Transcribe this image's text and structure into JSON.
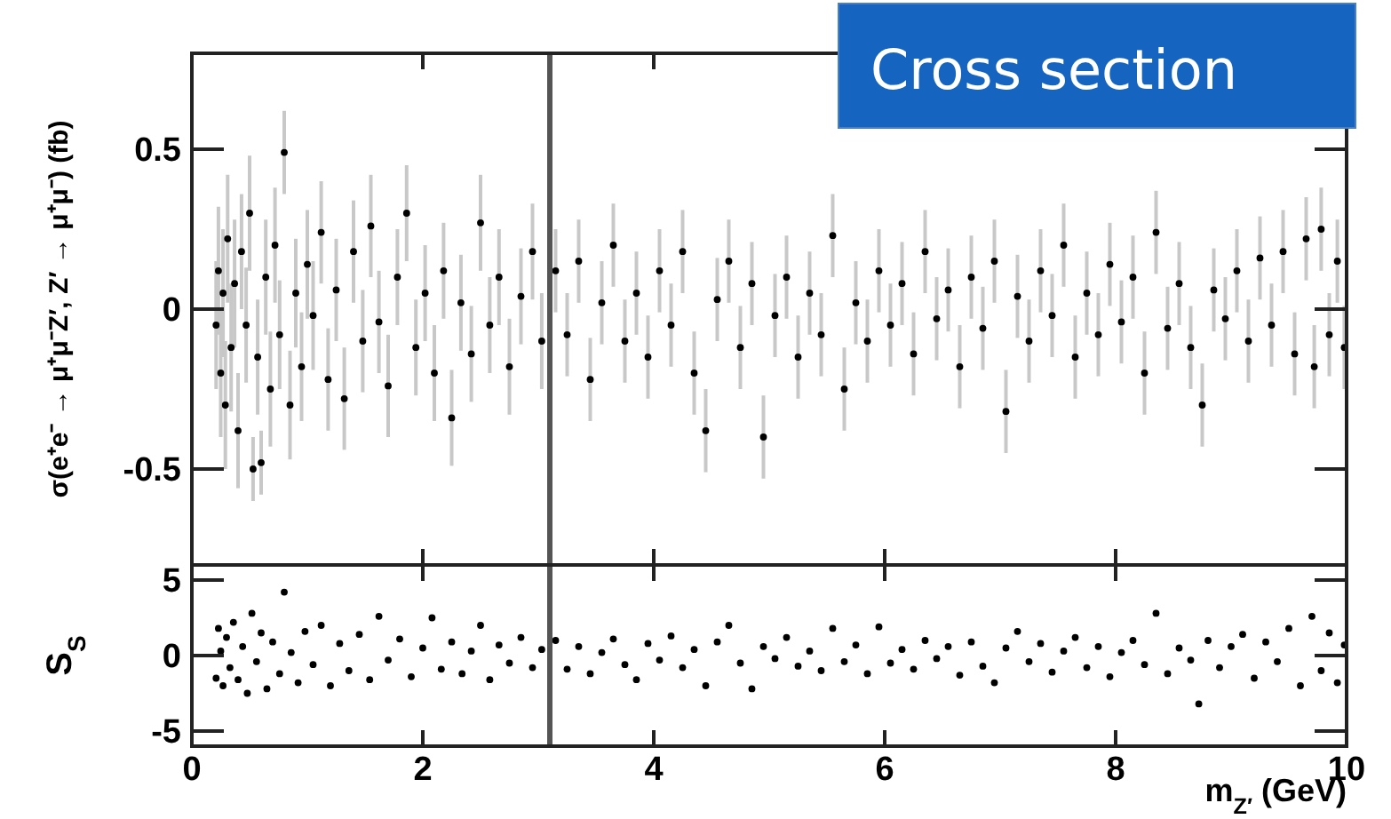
{
  "chart_data": [
    {
      "type": "scatter",
      "title": "Cross section",
      "ylabel": "σ(e⁺e⁻ → μ⁺μ⁻Z′, Z′ → μ⁺μ⁻) (fb)",
      "xlim": [
        0,
        10
      ],
      "xticks": [
        0,
        2,
        4,
        6,
        8,
        10
      ],
      "ylim": [
        -0.8,
        0.8
      ],
      "yticks": [
        -0.5,
        0,
        0.5
      ],
      "tick_labels": "y",
      "grid": false,
      "marker": "circle",
      "ref_lines": [
        {
          "axis": "x",
          "value": 3.1,
          "color": "#555555"
        }
      ],
      "series": [
        {
          "color": "#000000",
          "x": [
            0.21,
            0.23,
            0.25,
            0.27,
            0.29,
            0.31,
            0.34,
            0.37,
            0.4,
            0.43,
            0.47,
            0.5,
            0.53,
            0.57,
            0.6,
            0.64,
            0.68,
            0.72,
            0.76,
            0.8,
            0.85,
            0.9,
            0.95,
            1.0,
            1.05,
            1.12,
            1.18,
            1.25,
            1.32,
            1.4,
            1.48,
            1.55,
            1.62,
            1.7,
            1.78,
            1.86,
            1.94,
            2.02,
            2.1,
            2.18,
            2.25,
            2.33,
            2.42,
            2.5,
            2.58,
            2.66,
            2.75,
            2.85,
            2.95,
            3.03,
            3.15,
            3.25,
            3.35,
            3.45,
            3.55,
            3.65,
            3.75,
            3.85,
            3.95,
            4.05,
            4.15,
            4.25,
            4.35,
            4.45,
            4.55,
            4.65,
            4.75,
            4.85,
            4.95,
            5.05,
            5.15,
            5.25,
            5.35,
            5.45,
            5.55,
            5.65,
            5.75,
            5.85,
            5.95,
            6.05,
            6.15,
            6.25,
            6.35,
            6.45,
            6.55,
            6.65,
            6.75,
            6.85,
            6.95,
            7.05,
            7.15,
            7.25,
            7.35,
            7.45,
            7.55,
            7.65,
            7.75,
            7.85,
            7.95,
            8.05,
            8.15,
            8.25,
            8.35,
            8.45,
            8.55,
            8.65,
            8.75,
            8.85,
            8.95,
            9.05,
            9.15,
            9.25,
            9.35,
            9.45,
            9.55,
            9.65,
            9.72,
            9.78,
            9.85,
            9.92,
            9.98
          ],
          "values": [
            -0.05,
            0.12,
            -0.2,
            0.05,
            -0.3,
            0.22,
            -0.12,
            0.08,
            -0.38,
            0.18,
            -0.05,
            0.3,
            -0.5,
            -0.15,
            -0.48,
            0.1,
            -0.25,
            0.2,
            -0.08,
            0.49,
            -0.3,
            0.05,
            -0.18,
            0.14,
            -0.02,
            0.24,
            -0.22,
            0.06,
            -0.28,
            0.18,
            -0.1,
            0.26,
            -0.04,
            -0.24,
            0.1,
            0.3,
            -0.12,
            0.05,
            -0.2,
            0.12,
            -0.34,
            0.02,
            -0.14,
            0.27,
            -0.05,
            0.1,
            -0.18,
            0.04,
            0.18,
            -0.1,
            0.12,
            -0.08,
            0.15,
            -0.22,
            0.02,
            0.2,
            -0.1,
            0.05,
            -0.15,
            0.12,
            -0.05,
            0.18,
            -0.2,
            -0.38,
            0.03,
            0.15,
            -0.12,
            0.08,
            -0.4,
            -0.02,
            0.1,
            -0.15,
            0.05,
            -0.08,
            0.23,
            -0.25,
            0.02,
            -0.1,
            0.12,
            -0.05,
            0.08,
            -0.14,
            0.18,
            -0.03,
            0.06,
            -0.18,
            0.1,
            -0.06,
            0.15,
            -0.32,
            0.04,
            -0.1,
            0.12,
            -0.02,
            0.2,
            -0.15,
            0.05,
            -0.08,
            0.14,
            -0.04,
            0.1,
            -0.2,
            0.24,
            -0.06,
            0.08,
            -0.12,
            -0.3,
            0.06,
            -0.03,
            0.12,
            -0.1,
            0.16,
            -0.05,
            0.18,
            -0.14,
            0.22,
            -0.18,
            0.25,
            -0.08,
            0.15,
            -0.12
          ],
          "errors": [
            0.2,
            0.2,
            0.2,
            0.2,
            0.2,
            0.2,
            0.2,
            0.2,
            0.18,
            0.18,
            0.18,
            0.18,
            0.1,
            0.18,
            0.1,
            0.18,
            0.18,
            0.18,
            0.17,
            0.13,
            0.17,
            0.17,
            0.17,
            0.17,
            0.17,
            0.16,
            0.16,
            0.16,
            0.16,
            0.16,
            0.16,
            0.16,
            0.16,
            0.16,
            0.15,
            0.15,
            0.15,
            0.15,
            0.15,
            0.15,
            0.15,
            0.15,
            0.15,
            0.15,
            0.15,
            0.15,
            0.15,
            0.15,
            0.15,
            0.15,
            0.13,
            0.13,
            0.13,
            0.13,
            0.13,
            0.13,
            0.13,
            0.13,
            0.13,
            0.13,
            0.13,
            0.13,
            0.13,
            0.13,
            0.13,
            0.13,
            0.13,
            0.13,
            0.13,
            0.13,
            0.13,
            0.13,
            0.13,
            0.13,
            0.13,
            0.13,
            0.13,
            0.13,
            0.13,
            0.13,
            0.13,
            0.13,
            0.13,
            0.13,
            0.13,
            0.13,
            0.13,
            0.13,
            0.13,
            0.13,
            0.13,
            0.13,
            0.13,
            0.13,
            0.13,
            0.13,
            0.13,
            0.13,
            0.13,
            0.13,
            0.13,
            0.13,
            0.13,
            0.13,
            0.13,
            0.13,
            0.13,
            0.13,
            0.13,
            0.13,
            0.13,
            0.13,
            0.13,
            0.13,
            0.13,
            0.13,
            0.13,
            0.13,
            0.13,
            0.13,
            0.13
          ]
        }
      ]
    },
    {
      "type": "scatter",
      "ylabel": "S$_{S}$",
      "xlabel": "m$_{Z′}$ (GeV)",
      "xlim": [
        0,
        10
      ],
      "xticks": [
        0,
        2,
        4,
        6,
        8,
        10
      ],
      "ylim": [
        -6,
        6
      ],
      "yticks": [
        -5,
        0,
        5
      ],
      "grid": false,
      "marker": "circle",
      "ref_lines": [
        {
          "axis": "x",
          "value": 3.1,
          "color": "#555555"
        }
      ],
      "series": [
        {
          "color": "#000000",
          "x": [
            0.21,
            0.23,
            0.25,
            0.27,
            0.3,
            0.33,
            0.36,
            0.4,
            0.44,
            0.48,
            0.52,
            0.56,
            0.6,
            0.65,
            0.7,
            0.76,
            0.8,
            0.86,
            0.92,
            0.98,
            1.05,
            1.12,
            1.2,
            1.28,
            1.36,
            1.45,
            1.54,
            1.62,
            1.7,
            1.8,
            1.9,
            2.0,
            2.08,
            2.16,
            2.25,
            2.34,
            2.42,
            2.5,
            2.58,
            2.66,
            2.75,
            2.85,
            2.95,
            3.03,
            3.15,
            3.25,
            3.35,
            3.45,
            3.55,
            3.65,
            3.75,
            3.85,
            3.95,
            4.05,
            4.15,
            4.25,
            4.35,
            4.45,
            4.55,
            4.65,
            4.75,
            4.85,
            4.95,
            5.05,
            5.15,
            5.25,
            5.35,
            5.45,
            5.55,
            5.65,
            5.75,
            5.85,
            5.95,
            6.05,
            6.15,
            6.25,
            6.35,
            6.45,
            6.55,
            6.65,
            6.75,
            6.85,
            6.95,
            7.05,
            7.15,
            7.25,
            7.35,
            7.45,
            7.55,
            7.65,
            7.75,
            7.85,
            7.95,
            8.05,
            8.15,
            8.25,
            8.35,
            8.45,
            8.55,
            8.65,
            8.72,
            8.8,
            8.9,
            9.0,
            9.1,
            9.2,
            9.3,
            9.4,
            9.5,
            9.6,
            9.7,
            9.78,
            9.85,
            9.92,
            9.98
          ],
          "values": [
            -1.5,
            1.8,
            0.3,
            -2.0,
            1.2,
            -0.8,
            2.2,
            -1.6,
            0.6,
            -2.5,
            2.8,
            -0.4,
            1.5,
            -2.2,
            0.9,
            -1.2,
            4.2,
            0.2,
            -1.8,
            1.6,
            -0.6,
            2.0,
            -2.0,
            0.8,
            -1.0,
            1.4,
            -1.6,
            2.6,
            -0.3,
            1.1,
            -1.4,
            0.5,
            2.5,
            -0.9,
            0.9,
            -1.2,
            0.3,
            2.0,
            -1.6,
            0.7,
            -0.5,
            1.2,
            -0.8,
            0.4,
            1.0,
            -0.9,
            0.6,
            -1.2,
            0.2,
            1.1,
            -0.6,
            -1.6,
            0.8,
            -0.3,
            1.3,
            -0.8,
            0.4,
            -2.0,
            0.9,
            2.0,
            -0.5,
            -2.2,
            0.6,
            -0.2,
            1.2,
            -0.7,
            0.3,
            -1.0,
            1.8,
            -0.4,
            0.7,
            -1.2,
            1.9,
            -0.5,
            0.4,
            -0.9,
            1.0,
            -0.2,
            0.6,
            -1.3,
            0.9,
            -0.7,
            -1.8,
            0.5,
            1.6,
            -0.4,
            0.8,
            -1.1,
            0.3,
            1.2,
            -0.8,
            0.6,
            -1.4,
            0.2,
            1.0,
            -0.6,
            2.8,
            -1.2,
            0.5,
            -0.3,
            -3.2,
            1.0,
            -0.8,
            0.6,
            1.4,
            -1.5,
            0.9,
            -0.4,
            1.8,
            -2.0,
            2.6,
            -1.0,
            1.5,
            -1.8,
            0.7
          ]
        }
      ]
    }
  ]
}
